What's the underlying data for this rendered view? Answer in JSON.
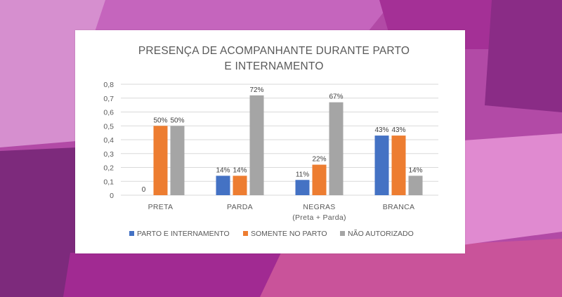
{
  "chart_data": {
    "type": "bar",
    "title_lines": [
      "PRESENÇA DE ACOMPANHANTE DURANTE PARTO",
      "E INTERNAMENTO"
    ],
    "categories": [
      {
        "line1": "PRETA",
        "line2": ""
      },
      {
        "line1": "PARDA",
        "line2": ""
      },
      {
        "line1": "NEGRAS",
        "line2": "(Preta + Parda)"
      },
      {
        "line1": "BRANCA",
        "line2": ""
      }
    ],
    "series": [
      {
        "name": "PARTO E INTERNAMENTO",
        "color": "#4472c4",
        "values": [
          0,
          0.14,
          0.11,
          0.43
        ],
        "labels": [
          "0",
          "14%",
          "11%",
          "43%"
        ]
      },
      {
        "name": "SOMENTE NO PARTO",
        "color": "#ed7d31",
        "values": [
          0.5,
          0.14,
          0.22,
          0.43
        ],
        "labels": [
          "50%",
          "14%",
          "22%",
          "43%"
        ]
      },
      {
        "name": "NÃO AUTORIZADO",
        "color": "#a5a5a5",
        "values": [
          0.5,
          0.72,
          0.67,
          0.14
        ],
        "labels": [
          "50%",
          "72%",
          "67%",
          "14%"
        ]
      }
    ],
    "ylim": [
      0,
      0.8
    ],
    "yticks": [
      "0",
      "0,1",
      "0,2",
      "0,3",
      "0,4",
      "0,5",
      "0,6",
      "0,7",
      "0,8"
    ],
    "legend_position": "bottom",
    "grid": true
  }
}
